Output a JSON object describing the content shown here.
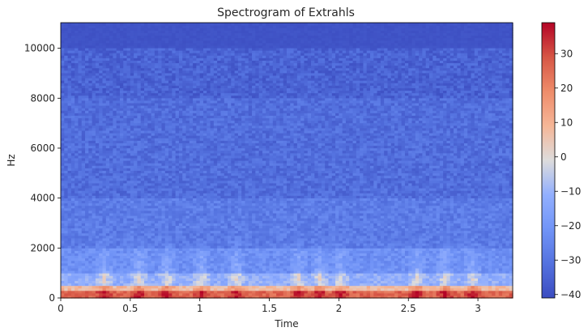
{
  "chart_data": {
    "type": "heatmap",
    "title": "Spectrogram of Extrahls",
    "xlabel": "Time",
    "ylabel": "Hz",
    "xlim": [
      0,
      3.25
    ],
    "ylim": [
      0,
      11025
    ],
    "x_ticks": [
      0,
      0.5,
      1,
      1.5,
      2,
      2.5,
      3
    ],
    "x_tick_labels": [
      "0",
      "0.5",
      "1",
      "1.5",
      "2",
      "2.5",
      "3"
    ],
    "y_ticks": [
      0,
      2000,
      4000,
      6000,
      8000,
      10000
    ],
    "y_tick_labels": [
      "0",
      "2000",
      "4000",
      "6000",
      "8000",
      "10000"
    ],
    "colorbar": {
      "colormap": "coolwarm",
      "range": [
        -41,
        39
      ],
      "ticks": [
        30,
        20,
        10,
        0,
        -10,
        -20,
        -30,
        -40
      ],
      "tick_labels": [
        "30",
        "20",
        "10",
        "0",
        "−10",
        "−20",
        "−30",
        "−40"
      ]
    },
    "intensity_db": {
      "low_frequency_band_0_500hz": [
        8,
        36
      ],
      "mid_frequency_band_500_2000hz": [
        -25,
        10
      ],
      "band_2000_4000hz": [
        -32,
        -10
      ],
      "band_4000_10000hz": [
        -38,
        -28
      ],
      "above_10000hz": [
        -41,
        -38
      ]
    },
    "bursts_time": [
      0.3,
      0.55,
      0.75,
      1.0,
      1.25,
      1.7,
      1.85,
      2.0,
      2.55,
      2.75,
      2.95
    ]
  }
}
